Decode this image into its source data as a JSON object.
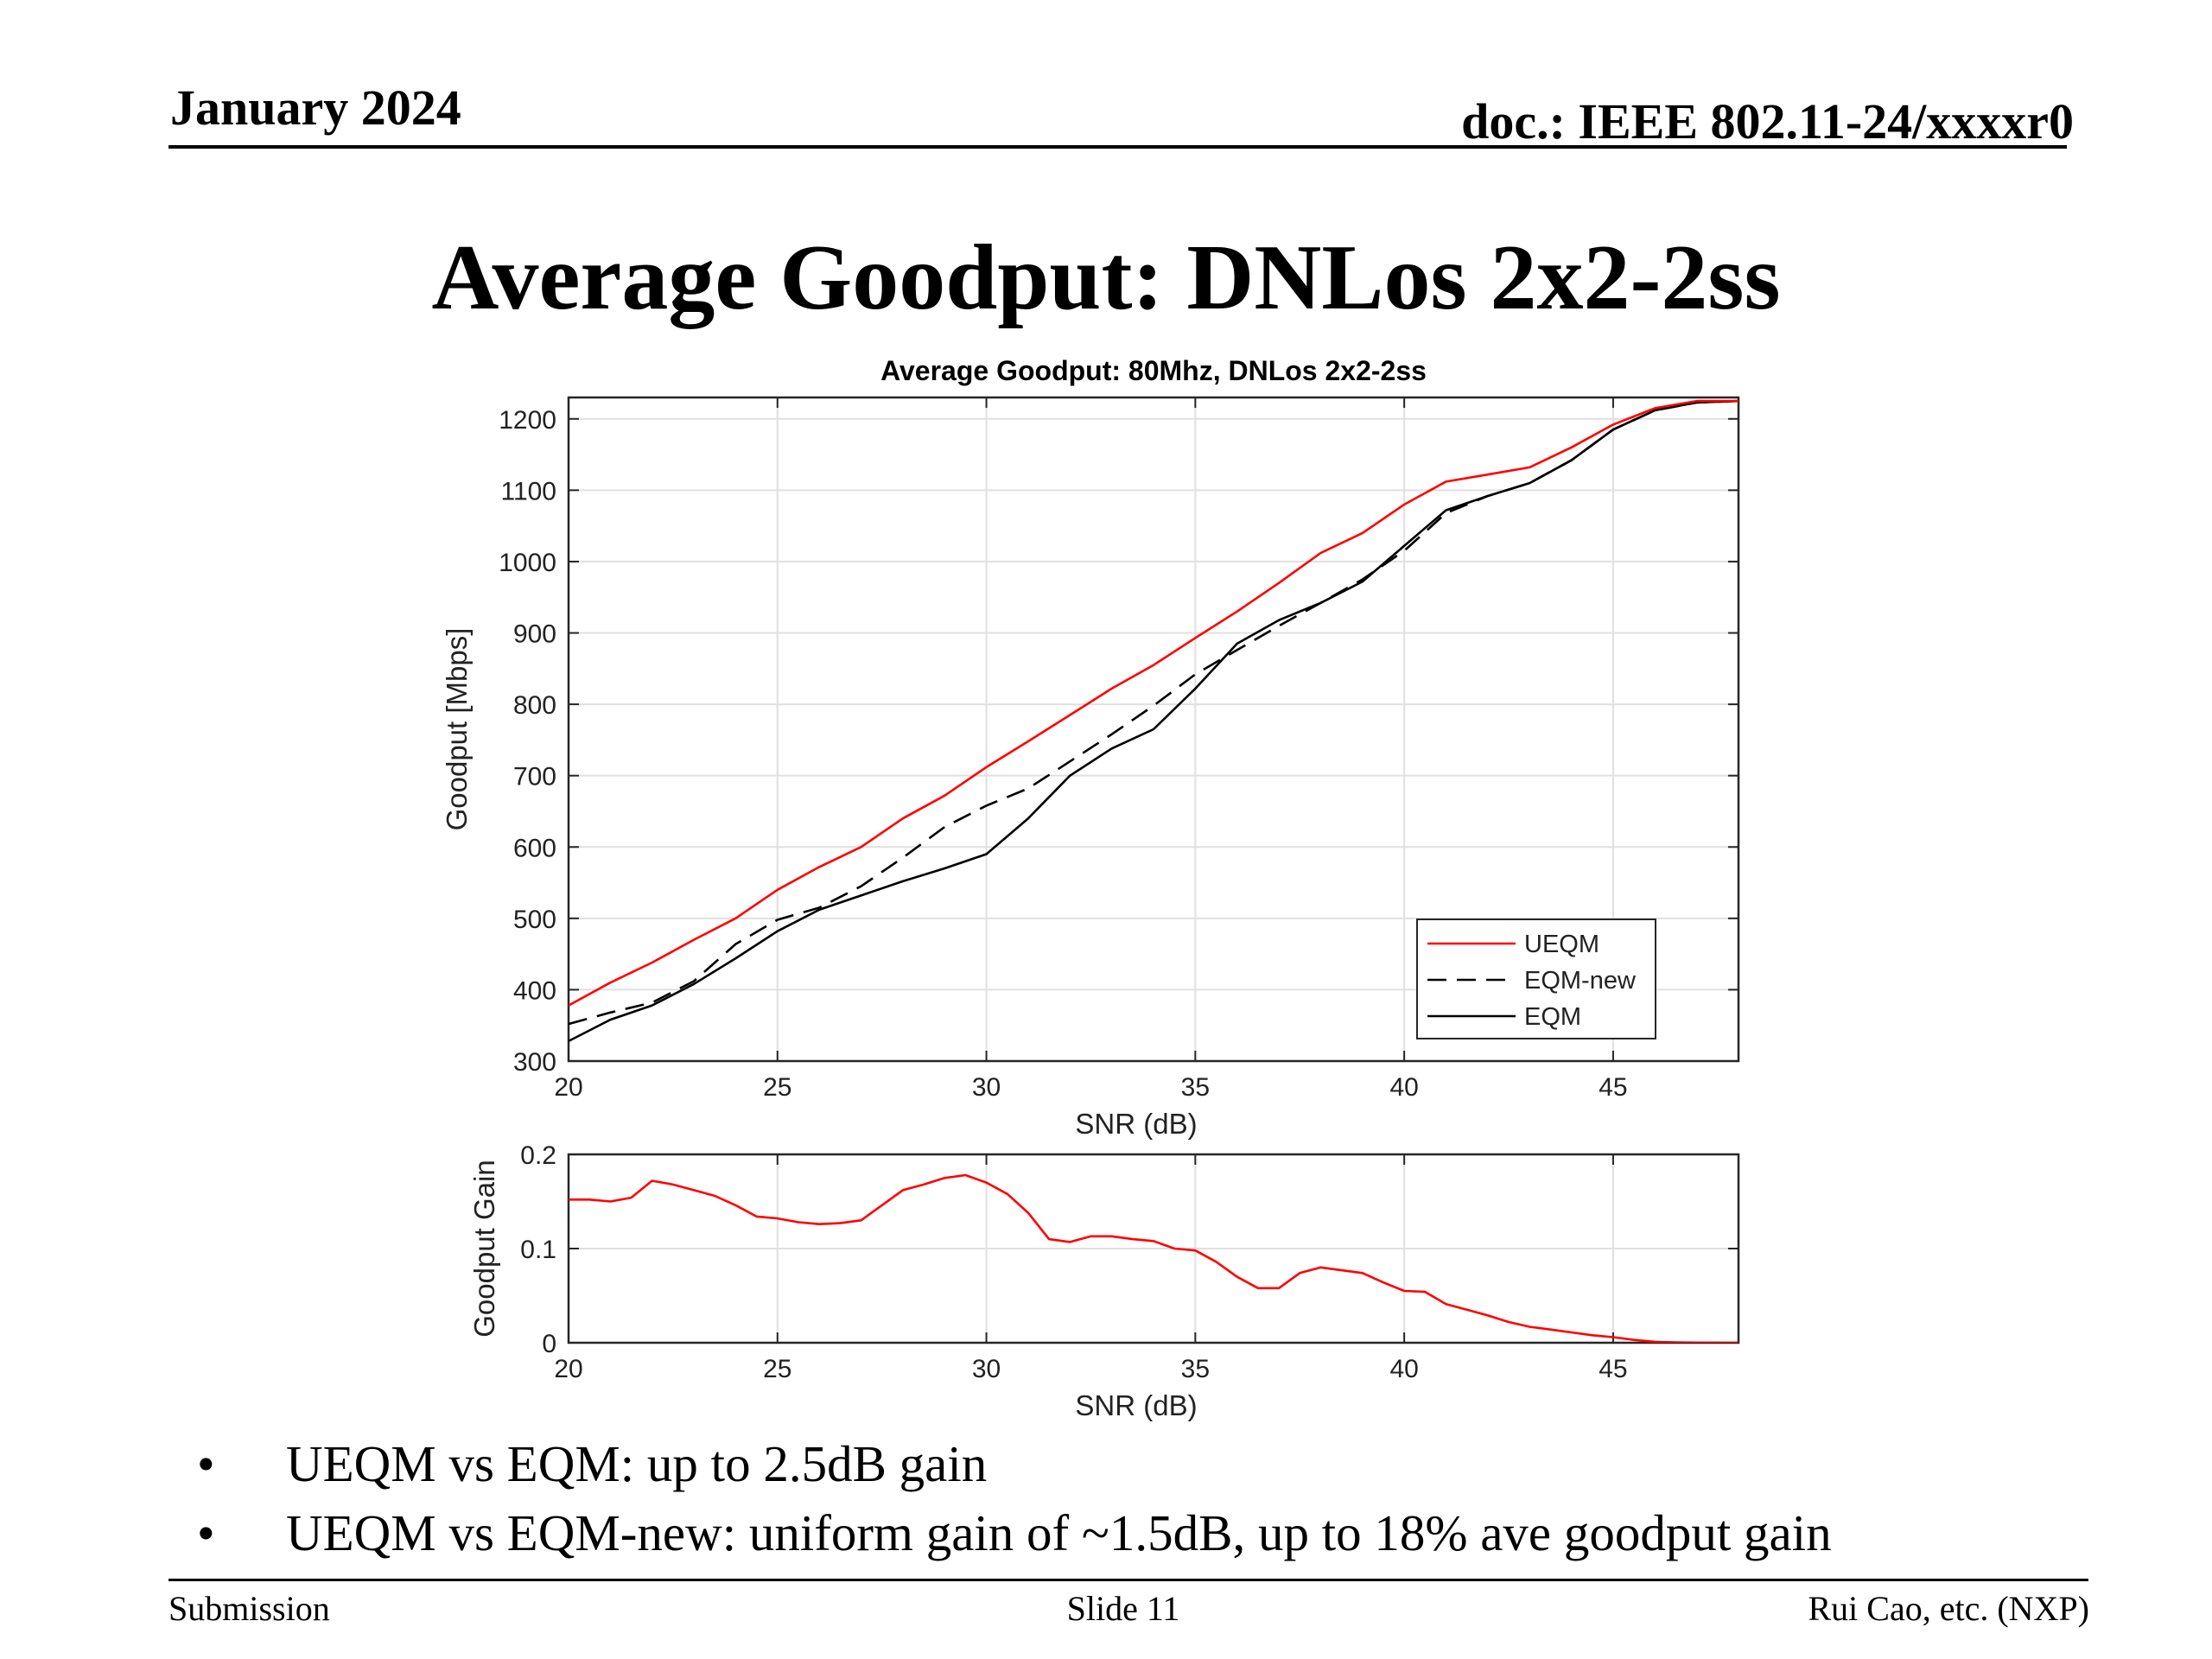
{
  "header": {
    "date": "January 2024",
    "doc": "doc.: IEEE 802.11-24/xxxxr0"
  },
  "slide_title": "Average Goodput: DNLos 2x2-2ss",
  "bullets": [
    {
      "marker": "•",
      "text": "UEQM vs EQM: up to 2.5dB gain"
    },
    {
      "marker": "•",
      "text": "UEQM vs EQM-new: uniform gain of ~1.5dB, up to 18% ave goodput gain"
    }
  ],
  "footer": {
    "left": "Submission",
    "center": "Slide 11",
    "right": "Rui Cao, etc. (NXP)"
  },
  "colors": {
    "ueqm": "#ff0000",
    "eqm_new": "#000000",
    "eqm": "#000000",
    "grid": "#e0e0e0"
  },
  "chart_data": [
    {
      "type": "line",
      "title": "Average Goodput: 80Mhz, DNLos 2x2-2ss",
      "xlabel": "SNR (dB)",
      "ylabel": "Goodput [Mbps]",
      "xlim": [
        20,
        48
      ],
      "ylim": [
        300,
        1230
      ],
      "xticks": [
        20,
        25,
        30,
        35,
        40,
        45
      ],
      "yticks": [
        300,
        400,
        500,
        600,
        700,
        800,
        900,
        1000,
        1100,
        1200
      ],
      "grid": true,
      "legend_position": "bottom-right",
      "x": [
        20,
        21,
        22,
        23,
        24,
        25,
        26,
        27,
        28,
        29,
        30,
        31,
        32,
        33,
        34,
        35,
        36,
        37,
        38,
        39,
        40,
        41,
        42,
        43,
        44,
        45,
        46,
        47,
        48
      ],
      "series": [
        {
          "name": "UEQM",
          "style": "solid",
          "color": "#ff0000",
          "values": [
            378,
            410,
            438,
            470,
            500,
            540,
            572,
            600,
            640,
            672,
            712,
            748,
            785,
            822,
            855,
            893,
            930,
            970,
            1012,
            1040,
            1080,
            1112,
            1122,
            1132,
            1160,
            1192,
            1215,
            1225,
            1225
          ]
        },
        {
          "name": "EQM-new",
          "style": "dashed",
          "color": "#000000",
          "values": [
            352,
            368,
            382,
            412,
            464,
            498,
            515,
            545,
            585,
            628,
            658,
            682,
            720,
            758,
            798,
            842,
            876,
            910,
            942,
            975,
            1015,
            1068,
            1092,
            1110,
            1142,
            1185,
            1212,
            1223,
            1225
          ]
        },
        {
          "name": "EQM",
          "style": "solid",
          "color": "#000000",
          "values": [
            328,
            358,
            378,
            408,
            444,
            482,
            512,
            532,
            552,
            570,
            590,
            640,
            700,
            738,
            765,
            822,
            885,
            918,
            942,
            972,
            1022,
            1072,
            1092,
            1110,
            1142,
            1185,
            1212,
            1223,
            1225
          ]
        }
      ]
    },
    {
      "type": "line",
      "title": "",
      "xlabel": "SNR (dB)",
      "ylabel": "Goodput Gain",
      "xlim": [
        20,
        48
      ],
      "ylim": [
        0,
        0.2
      ],
      "xticks": [
        20,
        25,
        30,
        35,
        40,
        45
      ],
      "yticks": [
        0,
        0.1,
        0.2
      ],
      "ytick_labels": [
        "0",
        "0.1",
        "0.2"
      ],
      "grid": true,
      "x": [
        20,
        20.5,
        21,
        21.5,
        22,
        22.5,
        23,
        23.5,
        24,
        24.5,
        25,
        25.5,
        26,
        26.5,
        27,
        27.5,
        28,
        28.5,
        29,
        29.5,
        30,
        30.5,
        31,
        31.5,
        32,
        32.5,
        33,
        33.5,
        34,
        34.5,
        35,
        35.5,
        36,
        36.5,
        37,
        37.5,
        38,
        38.5,
        39,
        39.5,
        40,
        40.5,
        41,
        41.5,
        42,
        42.5,
        43,
        43.5,
        44,
        44.5,
        45,
        45.5,
        46,
        46.5,
        47,
        47.5,
        48
      ],
      "series": [
        {
          "name": "",
          "style": "solid",
          "color": "#ff0000",
          "values": [
            0.152,
            0.152,
            0.15,
            0.154,
            0.172,
            0.168,
            0.162,
            0.156,
            0.146,
            0.134,
            0.132,
            0.128,
            0.126,
            0.127,
            0.13,
            0.146,
            0.162,
            0.168,
            0.175,
            0.178,
            0.17,
            0.158,
            0.138,
            0.11,
            0.107,
            0.113,
            0.113,
            0.11,
            0.108,
            0.1,
            0.098,
            0.086,
            0.07,
            0.058,
            0.058,
            0.074,
            0.08,
            0.077,
            0.074,
            0.064,
            0.055,
            0.054,
            0.041,
            0.035,
            0.029,
            0.022,
            0.017,
            0.014,
            0.011,
            0.008,
            0.006,
            0.003,
            0.001,
            0.0005,
            0.0002,
            0.0001,
            0.0
          ]
        }
      ]
    }
  ]
}
